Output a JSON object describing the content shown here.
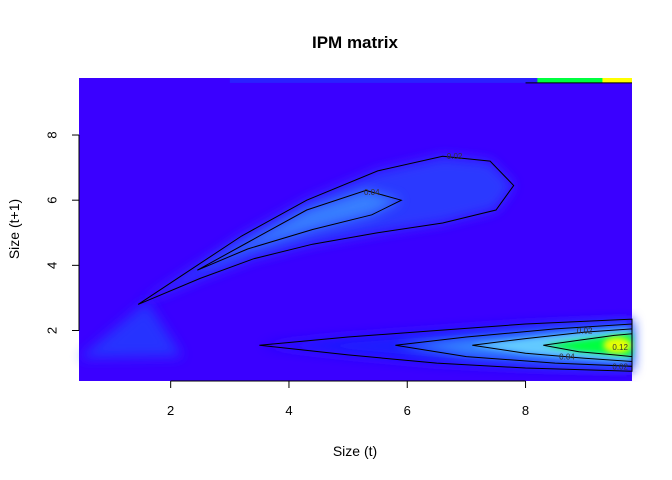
{
  "chart_data": {
    "type": "heatmap",
    "title": "IPM matrix",
    "xlabel": "Size (t)",
    "ylabel": "Size (t+1)",
    "xlim": [
      0.45,
      9.8
    ],
    "ylim": [
      0.45,
      9.75
    ],
    "x_ticks": [
      2,
      4,
      6,
      8
    ],
    "y_ticks": [
      2,
      4,
      6,
      8
    ],
    "x_tick_labels": [
      "2",
      "4",
      "6",
      "8"
    ],
    "y_tick_labels": [
      "2",
      "4",
      "6",
      "8"
    ],
    "colors": {
      "background": "#3a00ff",
      "low": "#1f1aff",
      "mid": "#3aa0ff",
      "high": "#00ff40",
      "peak": "#ffff00",
      "contour": "#000000"
    },
    "grid": false,
    "contour_labels": [
      {
        "text": "0.02",
        "x": 6.8,
        "y": 7.35
      },
      {
        "text": "0.04",
        "x": 5.4,
        "y": 6.25
      },
      {
        "text": "0.02",
        "x": 9.0,
        "y": 2.0
      },
      {
        "text": "0.04",
        "x": 8.7,
        "y": 1.2
      },
      {
        "text": "0.12",
        "x": 9.6,
        "y": 1.5
      },
      {
        "text": "0.02",
        "x": 9.6,
        "y": 0.9
      }
    ],
    "contours": [
      [
        [
          1.45,
          2.8
        ],
        [
          2.2,
          3.7
        ],
        [
          3.2,
          4.9
        ],
        [
          4.3,
          6.0
        ],
        [
          5.5,
          6.9
        ],
        [
          6.6,
          7.35
        ],
        [
          7.4,
          7.2
        ],
        [
          7.8,
          6.45
        ],
        [
          7.5,
          5.7
        ],
        [
          6.6,
          5.3
        ],
        [
          5.5,
          5.0
        ],
        [
          4.4,
          4.65
        ],
        [
          3.4,
          4.2
        ],
        [
          2.5,
          3.6
        ],
        [
          1.45,
          2.8
        ]
      ],
      [
        [
          2.45,
          3.85
        ],
        [
          3.3,
          4.7
        ],
        [
          4.3,
          5.7
        ],
        [
          5.3,
          6.3
        ],
        [
          5.9,
          6.0
        ],
        [
          5.4,
          5.55
        ],
        [
          4.4,
          5.1
        ],
        [
          3.3,
          4.5
        ],
        [
          2.45,
          3.85
        ]
      ],
      [
        [
          3.5,
          1.55
        ],
        [
          5.0,
          1.8
        ],
        [
          6.5,
          2.0
        ],
        [
          8.0,
          2.2
        ],
        [
          9.8,
          2.35
        ],
        [
          9.8,
          0.75
        ],
        [
          8.0,
          0.85
        ],
        [
          6.5,
          1.0
        ],
        [
          5.0,
          1.25
        ],
        [
          3.5,
          1.55
        ]
      ],
      [
        [
          5.8,
          1.55
        ],
        [
          7.0,
          1.8
        ],
        [
          8.5,
          2.05
        ],
        [
          9.8,
          2.2
        ],
        [
          9.8,
          0.9
        ],
        [
          8.5,
          1.0
        ],
        [
          7.0,
          1.2
        ],
        [
          5.8,
          1.55
        ]
      ],
      [
        [
          7.1,
          1.55
        ],
        [
          8.0,
          1.75
        ],
        [
          9.0,
          1.95
        ],
        [
          9.8,
          2.05
        ],
        [
          9.8,
          1.05
        ],
        [
          9.0,
          1.15
        ],
        [
          8.0,
          1.3
        ],
        [
          7.1,
          1.55
        ]
      ],
      [
        [
          8.3,
          1.55
        ],
        [
          8.9,
          1.7
        ],
        [
          9.5,
          1.85
        ],
        [
          9.8,
          1.9
        ],
        [
          9.8,
          1.2
        ],
        [
          9.5,
          1.25
        ],
        [
          8.9,
          1.35
        ],
        [
          8.3,
          1.55
        ]
      ]
    ]
  }
}
